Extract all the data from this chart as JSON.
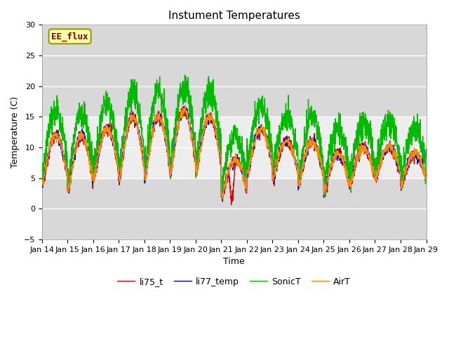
{
  "title": "Instument Temperatures",
  "xlabel": "Time",
  "ylabel": "Temperature (C)",
  "ylim": [
    -5,
    30
  ],
  "x_tick_labels": [
    "Jan 14",
    "Jan 15",
    "Jan 16",
    "Jan 17",
    "Jan 18",
    "Jan 19",
    "Jan 20",
    "Jan 21",
    "Jan 22",
    "Jan 23",
    "Jan 24",
    "Jan 25",
    "Jan 26",
    "Jan 27",
    "Jan 28",
    "Jan 29"
  ],
  "shaded_band": [
    5,
    15
  ],
  "shaded_color": "#d8d8d8",
  "plot_bg_color": "#d8d8d8",
  "fig_bg_color": "#ffffff",
  "annotation_text": "EE_flux",
  "colors": {
    "li75_t": "#cc0000",
    "li77_temp": "#0000cc",
    "SonicT": "#00bb00",
    "AirT": "#ff8800"
  },
  "line_width": 1.0,
  "yticks": [
    -5,
    0,
    5,
    10,
    15,
    20,
    25,
    30
  ]
}
